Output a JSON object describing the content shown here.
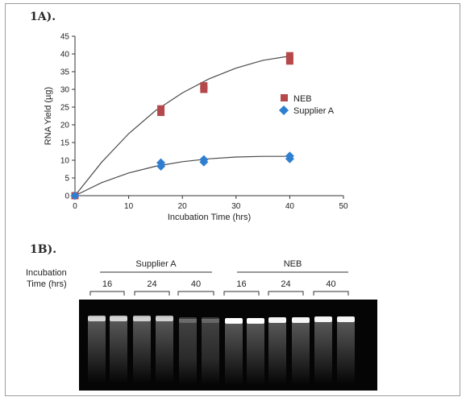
{
  "panel_a_label": "1A).",
  "panel_b_label": "1B).",
  "chart_data": {
    "type": "scatter",
    "xlabel": "Incubation Time (hrs)",
    "ylabel": "RNA Yield (µg)",
    "xlim": [
      0,
      50
    ],
    "ylim": [
      0,
      45
    ],
    "xticks": [
      0,
      10,
      20,
      30,
      40,
      50
    ],
    "yticks": [
      0,
      5,
      10,
      15,
      20,
      25,
      30,
      35,
      40,
      45
    ],
    "grid": false,
    "legend_position": "right",
    "series": [
      {
        "name": "NEB",
        "color": "#b5484a",
        "marker": "square",
        "points": [
          [
            0,
            0
          ],
          [
            16,
            23.5
          ],
          [
            16,
            24.5
          ],
          [
            24,
            30
          ],
          [
            24,
            31
          ],
          [
            40,
            38
          ],
          [
            40,
            39.5
          ]
        ],
        "curve": [
          [
            0,
            0
          ],
          [
            5,
            9.5
          ],
          [
            10,
            17.5
          ],
          [
            15,
            24
          ],
          [
            20,
            29
          ],
          [
            25,
            33
          ],
          [
            30,
            36
          ],
          [
            35,
            38.2
          ],
          [
            40,
            39.4
          ]
        ]
      },
      {
        "name": "Supplier A",
        "color": "#2f7fd0",
        "marker": "diamond",
        "points": [
          [
            0,
            0
          ],
          [
            16,
            8.3
          ],
          [
            16,
            9.3
          ],
          [
            24,
            9.5
          ],
          [
            24,
            10.2
          ],
          [
            40,
            10.4
          ],
          [
            40,
            11.2
          ]
        ],
        "curve": [
          [
            0,
            0
          ],
          [
            5,
            3.7
          ],
          [
            10,
            6.4
          ],
          [
            15,
            8.3
          ],
          [
            20,
            9.6
          ],
          [
            25,
            10.4
          ],
          [
            30,
            10.9
          ],
          [
            35,
            11.1
          ],
          [
            40,
            11.1
          ]
        ]
      }
    ]
  },
  "gel": {
    "incubation_label_1": "Incubation",
    "incubation_label_2": "Time (hrs)",
    "groups": [
      "Supplier A",
      "NEB"
    ],
    "times": [
      "16",
      "24",
      "40",
      "16",
      "24",
      "40"
    ]
  }
}
